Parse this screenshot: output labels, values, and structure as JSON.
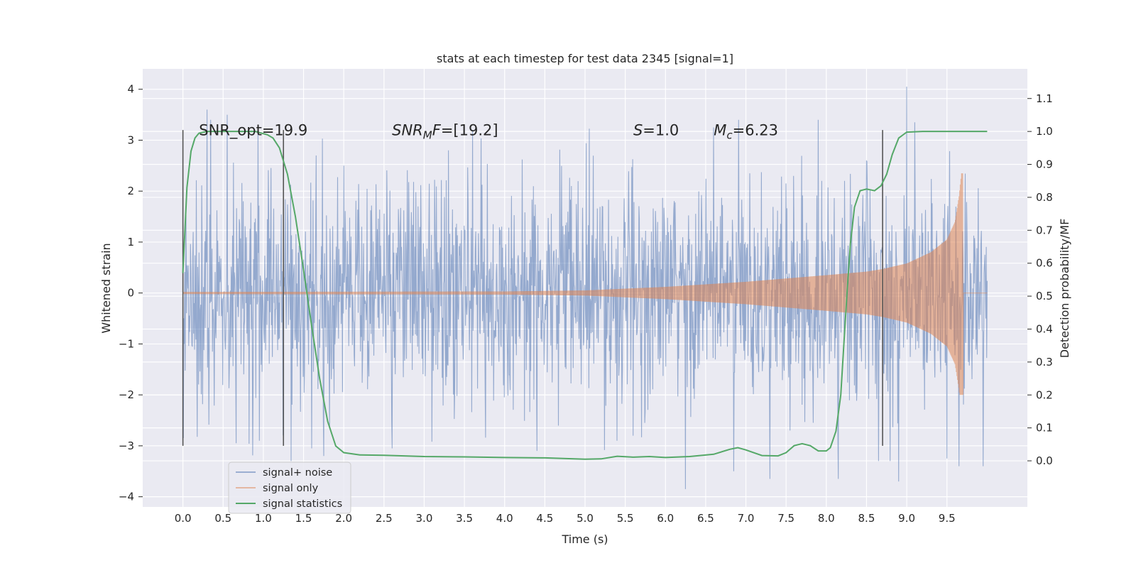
{
  "chart_data": {
    "type": "line",
    "title": "stats at each timestep for test data 2345 [signal=1]",
    "xlabel": "Time (s)",
    "ylabel": "Whitened strain",
    "y2label": "Detection probability/MF",
    "xlim": [
      -0.5,
      10.5
    ],
    "ylim": [
      -4.2,
      4.4
    ],
    "y2lim": [
      -0.14,
      1.19
    ],
    "xticks": [
      0.0,
      0.5,
      1.0,
      1.5,
      2.0,
      2.5,
      3.0,
      3.5,
      4.0,
      4.5,
      5.0,
      5.5,
      6.0,
      6.5,
      7.0,
      7.5,
      8.0,
      8.5,
      9.0,
      9.5
    ],
    "yticks": [
      -4,
      -3,
      -2,
      -1,
      0,
      1,
      2,
      3,
      4
    ],
    "y2ticks": [
      0.0,
      0.1,
      0.2,
      0.3,
      0.4,
      0.5,
      0.6,
      0.7,
      0.8,
      0.9,
      1.0,
      1.1
    ],
    "grid": true,
    "legend_position": "lower-left",
    "background": "#eaeaf2",
    "annotations": [
      {
        "type": "text",
        "x": 0.2,
        "y": 3.1,
        "parts": [
          {
            "t": "SNR_opt=19.9",
            "italic": false
          }
        ]
      },
      {
        "type": "text",
        "x": 2.6,
        "y": 3.1,
        "parts": [
          {
            "t": "SNR",
            "italic": true
          },
          {
            "t": "M",
            "italic": true,
            "sub": true
          },
          {
            "t": "F",
            "italic": true
          },
          {
            "t": "=[19.2]",
            "italic": false
          }
        ]
      },
      {
        "type": "text",
        "x": 5.6,
        "y": 3.1,
        "parts": [
          {
            "t": "S",
            "italic": true
          },
          {
            "t": "=1.0",
            "italic": false
          }
        ]
      },
      {
        "type": "text",
        "x": 6.6,
        "y": 3.1,
        "parts": [
          {
            "t": "M",
            "italic": true
          },
          {
            "t": "c",
            "italic": true,
            "sub": true
          },
          {
            "t": "=6.23",
            "italic": false
          }
        ]
      }
    ],
    "vertical_markers": [
      {
        "x": 0.0,
        "y_from": -3.0,
        "y_to": 3.2
      },
      {
        "x": 1.25,
        "y_from": -3.0,
        "y_to": 3.2
      },
      {
        "x": 8.7,
        "y_from": -3.0,
        "y_to": 3.2
      }
    ],
    "series": [
      {
        "name": "signal+ noise",
        "axis": "left",
        "color": "#4c72b0",
        "opacity": 0.5,
        "x_range": [
          0.0,
          10.0
        ],
        "approx_envelope": {
          "typical_abs": 1.3,
          "max": 4.05,
          "min": -3.85
        },
        "points": [
          [
            0.0,
            -0.8
          ],
          [
            0.13,
            1.2
          ],
          [
            0.3,
            3.6
          ],
          [
            0.55,
            3.5
          ],
          [
            0.66,
            -2.95
          ],
          [
            0.95,
            -2.9
          ],
          [
            1.6,
            -3.05
          ],
          [
            1.75,
            -3.2
          ],
          [
            2.0,
            2.5
          ],
          [
            2.6,
            -3.05
          ],
          [
            3.3,
            2.8
          ],
          [
            3.6,
            3.2
          ],
          [
            4.4,
            -3.1
          ],
          [
            5.4,
            -2.9
          ],
          [
            5.6,
            -2.8
          ],
          [
            6.25,
            -3.85
          ],
          [
            6.6,
            3.25
          ],
          [
            6.85,
            -3.5
          ],
          [
            7.05,
            2.35
          ],
          [
            7.3,
            -3.65
          ],
          [
            7.9,
            3.4
          ],
          [
            8.15,
            -3.65
          ],
          [
            8.5,
            2.6
          ],
          [
            8.65,
            -3.3
          ],
          [
            8.9,
            -3.7
          ],
          [
            9.0,
            4.05
          ],
          [
            9.1,
            3.35
          ],
          [
            9.5,
            -3.25
          ],
          [
            9.65,
            -3.4
          ],
          [
            9.95,
            -3.4
          ]
        ]
      },
      {
        "name": "signal only",
        "axis": "left",
        "color": "#dd8452",
        "opacity": 0.5,
        "x_range": [
          0.0,
          10.0
        ],
        "envelope": [
          [
            0.0,
            0.02
          ],
          [
            4.0,
            0.03
          ],
          [
            5.0,
            0.05
          ],
          [
            6.0,
            0.12
          ],
          [
            7.0,
            0.22
          ],
          [
            8.0,
            0.35
          ],
          [
            8.5,
            0.42
          ],
          [
            8.7,
            0.47
          ],
          [
            9.0,
            0.58
          ],
          [
            9.3,
            0.8
          ],
          [
            9.5,
            1.05
          ],
          [
            9.6,
            1.4
          ],
          [
            9.65,
            1.9
          ],
          [
            9.68,
            2.35
          ],
          [
            9.7,
            0.0
          ],
          [
            10.0,
            0.0
          ]
        ],
        "envelope_lower_scale": 1.0,
        "peak_negative": -2.0
      },
      {
        "name": "signal statistics",
        "axis": "right",
        "color": "#55a868",
        "values": [
          [
            0.0,
            0.57
          ],
          [
            0.05,
            0.83
          ],
          [
            0.1,
            0.94
          ],
          [
            0.15,
            0.98
          ],
          [
            0.2,
            0.995
          ],
          [
            0.3,
            1.0
          ],
          [
            0.5,
            1.0
          ],
          [
            0.9,
            1.0
          ],
          [
            1.05,
            0.99
          ],
          [
            1.12,
            0.98
          ],
          [
            1.2,
            0.95
          ],
          [
            1.3,
            0.87
          ],
          [
            1.4,
            0.74
          ],
          [
            1.5,
            0.58
          ],
          [
            1.6,
            0.41
          ],
          [
            1.7,
            0.25
          ],
          [
            1.8,
            0.12
          ],
          [
            1.9,
            0.045
          ],
          [
            2.0,
            0.025
          ],
          [
            2.2,
            0.018
          ],
          [
            2.5,
            0.017
          ],
          [
            3.0,
            0.013
          ],
          [
            3.5,
            0.012
          ],
          [
            4.0,
            0.01
          ],
          [
            4.5,
            0.009
          ],
          [
            5.0,
            0.005
          ],
          [
            5.2,
            0.006
          ],
          [
            5.4,
            0.014
          ],
          [
            5.6,
            0.011
          ],
          [
            5.8,
            0.013
          ],
          [
            6.0,
            0.01
          ],
          [
            6.3,
            0.013
          ],
          [
            6.6,
            0.02
          ],
          [
            6.8,
            0.035
          ],
          [
            6.9,
            0.04
          ],
          [
            7.0,
            0.033
          ],
          [
            7.2,
            0.016
          ],
          [
            7.4,
            0.015
          ],
          [
            7.5,
            0.025
          ],
          [
            7.6,
            0.046
          ],
          [
            7.7,
            0.052
          ],
          [
            7.8,
            0.046
          ],
          [
            7.9,
            0.03
          ],
          [
            8.0,
            0.03
          ],
          [
            8.05,
            0.04
          ],
          [
            8.12,
            0.09
          ],
          [
            8.18,
            0.2
          ],
          [
            8.22,
            0.36
          ],
          [
            8.26,
            0.52
          ],
          [
            8.3,
            0.66
          ],
          [
            8.35,
            0.77
          ],
          [
            8.42,
            0.82
          ],
          [
            8.5,
            0.825
          ],
          [
            8.6,
            0.82
          ],
          [
            8.68,
            0.835
          ],
          [
            8.75,
            0.87
          ],
          [
            8.82,
            0.93
          ],
          [
            8.9,
            0.98
          ],
          [
            9.0,
            0.998
          ],
          [
            9.2,
            1.0
          ],
          [
            10.0,
            1.0
          ]
        ]
      }
    ]
  }
}
